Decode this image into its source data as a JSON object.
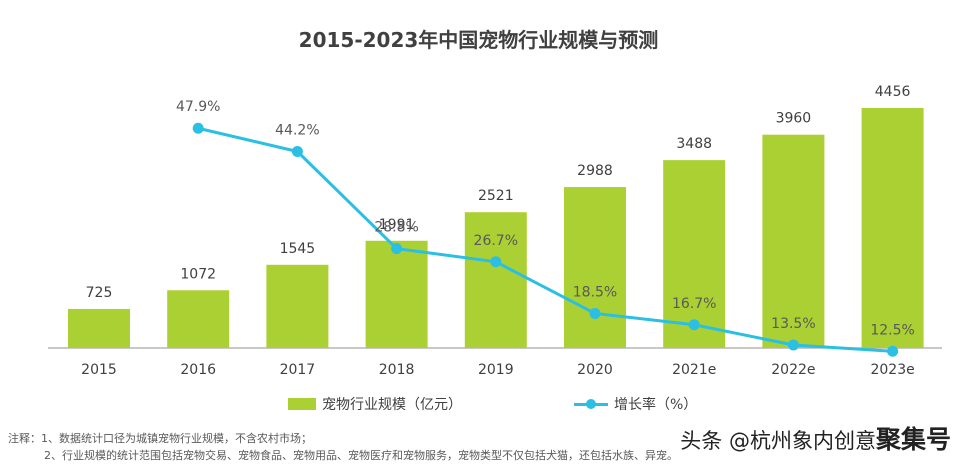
{
  "chart_data": {
    "type": "bar",
    "title": "2015-2023年中国宠物行业规模与预测",
    "categories": [
      "2015",
      "2016",
      "2017",
      "2018",
      "2019",
      "2020",
      "2021e",
      "2022e",
      "2023e"
    ],
    "series": [
      {
        "name": "宠物行业规模（亿元）",
        "type": "bar",
        "values": [
          725,
          1072,
          1545,
          1991,
          2521,
          2988,
          3488,
          3960,
          4456
        ],
        "labels": [
          "725",
          "1072",
          "1545",
          "1991",
          "2521",
          "2988",
          "3488",
          "3960",
          "4456"
        ],
        "color": "#abd033"
      },
      {
        "name": "增长率（%）",
        "type": "line",
        "values": [
          null,
          47.9,
          44.2,
          28.8,
          26.7,
          18.5,
          16.7,
          13.5,
          12.5
        ],
        "labels": [
          "",
          "47.9%",
          "44.2%",
          "28.8%",
          "26.7%",
          "18.5%",
          "16.7%",
          "13.5%",
          "12.5%"
        ],
        "color": "#2bbfe3"
      }
    ],
    "grid": false,
    "legend_position": "bottom"
  },
  "notes": {
    "line1": "注释：1、数据统计口径为城镇宠物行业规模，不含农村市场；",
    "line2": "2、行业规模的统计范围包括宠物交易、宠物食品、宠物用品、宠物医疗和宠物服务，宠物类型不仅包括犬猫，还包括水族、异宠。"
  },
  "watermark": {
    "text": "头条 @杭州象内创意",
    "brand": "聚集号"
  }
}
